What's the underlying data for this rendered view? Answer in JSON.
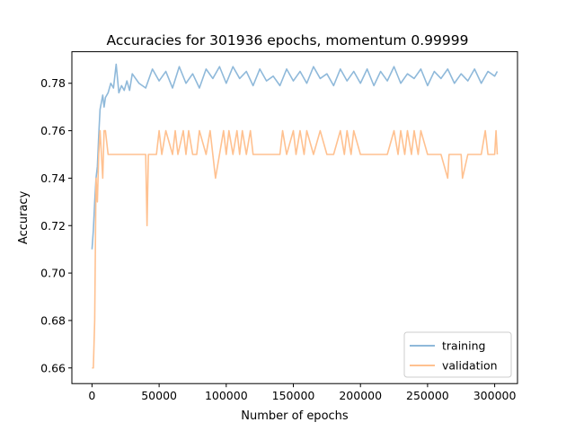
{
  "chart_data": {
    "type": "line",
    "title": "Accuracies for 301936 epochs, momentum 0.99999",
    "xlabel": "Number of epochs",
    "ylabel": "Accuracy",
    "xlim": [
      -15000,
      317000
    ],
    "ylim": [
      0.6534,
      0.7933
    ],
    "xticks": [
      0,
      50000,
      100000,
      150000,
      200000,
      250000,
      300000
    ],
    "yticks": [
      0.66,
      0.68,
      0.7,
      0.72,
      0.74,
      0.76,
      0.78
    ],
    "grid": false,
    "legend_position": "lower-right",
    "series": [
      {
        "name": "training",
        "color": "#8fb9da",
        "x": [
          0,
          1000,
          2000,
          3000,
          4000,
          5000,
          6000,
          7000,
          8000,
          9000,
          10000,
          12000,
          14000,
          16000,
          18000,
          20000,
          22000,
          24000,
          26000,
          28000,
          30000,
          35000,
          40000,
          45000,
          50000,
          55000,
          60000,
          65000,
          70000,
          75000,
          80000,
          85000,
          90000,
          95000,
          100000,
          105000,
          110000,
          115000,
          120000,
          125000,
          130000,
          135000,
          140000,
          145000,
          150000,
          155000,
          160000,
          165000,
          170000,
          175000,
          180000,
          185000,
          190000,
          195000,
          200000,
          205000,
          210000,
          215000,
          220000,
          225000,
          230000,
          235000,
          240000,
          245000,
          250000,
          255000,
          260000,
          265000,
          270000,
          275000,
          280000,
          285000,
          290000,
          295000,
          300000,
          301936
        ],
        "y": [
          0.71,
          0.718,
          0.73,
          0.74,
          0.745,
          0.758,
          0.769,
          0.772,
          0.775,
          0.77,
          0.774,
          0.776,
          0.78,
          0.778,
          0.788,
          0.776,
          0.779,
          0.777,
          0.781,
          0.777,
          0.784,
          0.78,
          0.778,
          0.786,
          0.781,
          0.785,
          0.778,
          0.787,
          0.78,
          0.784,
          0.778,
          0.786,
          0.782,
          0.787,
          0.78,
          0.787,
          0.782,
          0.785,
          0.779,
          0.786,
          0.781,
          0.783,
          0.779,
          0.786,
          0.781,
          0.785,
          0.78,
          0.787,
          0.782,
          0.784,
          0.779,
          0.786,
          0.781,
          0.785,
          0.78,
          0.786,
          0.779,
          0.785,
          0.781,
          0.787,
          0.78,
          0.784,
          0.782,
          0.786,
          0.779,
          0.785,
          0.782,
          0.786,
          0.78,
          0.784,
          0.781,
          0.786,
          0.78,
          0.785,
          0.783,
          0.785
        ]
      },
      {
        "name": "validation",
        "color": "#ffc190",
        "x": [
          0,
          1000,
          2000,
          3000,
          4000,
          5000,
          6000,
          7000,
          8000,
          9000,
          10000,
          12000,
          14000,
          16000,
          20000,
          25000,
          30000,
          35000,
          40000,
          41000,
          42000,
          45000,
          48000,
          50000,
          52000,
          55000,
          60000,
          62000,
          64000,
          68000,
          70000,
          72000,
          75000,
          78000,
          80000,
          85000,
          88000,
          90000,
          92000,
          95000,
          98000,
          100000,
          102000,
          105000,
          108000,
          110000,
          112000,
          115000,
          118000,
          120000,
          125000,
          130000,
          135000,
          140000,
          142000,
          145000,
          150000,
          152000,
          155000,
          158000,
          160000,
          165000,
          170000,
          175000,
          180000,
          185000,
          188000,
          190000,
          193000,
          195000,
          200000,
          205000,
          210000,
          215000,
          220000,
          225000,
          228000,
          230000,
          233000,
          235000,
          238000,
          240000,
          243000,
          245000,
          250000,
          255000,
          260000,
          265000,
          266000,
          270000,
          275000,
          276000,
          280000,
          285000,
          290000,
          293000,
          295000,
          300000,
          301000,
          301936
        ],
        "y": [
          0.66,
          0.66,
          0.68,
          0.74,
          0.73,
          0.75,
          0.76,
          0.75,
          0.74,
          0.76,
          0.76,
          0.75,
          0.75,
          0.75,
          0.75,
          0.75,
          0.75,
          0.75,
          0.75,
          0.72,
          0.75,
          0.75,
          0.75,
          0.76,
          0.75,
          0.76,
          0.75,
          0.76,
          0.75,
          0.76,
          0.75,
          0.76,
          0.75,
          0.75,
          0.76,
          0.75,
          0.76,
          0.75,
          0.74,
          0.75,
          0.76,
          0.75,
          0.76,
          0.75,
          0.76,
          0.75,
          0.76,
          0.75,
          0.76,
          0.75,
          0.75,
          0.75,
          0.75,
          0.75,
          0.76,
          0.75,
          0.76,
          0.75,
          0.76,
          0.75,
          0.76,
          0.75,
          0.76,
          0.75,
          0.75,
          0.76,
          0.75,
          0.76,
          0.75,
          0.76,
          0.75,
          0.75,
          0.75,
          0.75,
          0.75,
          0.76,
          0.75,
          0.76,
          0.75,
          0.76,
          0.75,
          0.76,
          0.75,
          0.76,
          0.75,
          0.75,
          0.75,
          0.74,
          0.75,
          0.75,
          0.75,
          0.74,
          0.75,
          0.75,
          0.75,
          0.76,
          0.75,
          0.75,
          0.76,
          0.75
        ]
      }
    ]
  }
}
